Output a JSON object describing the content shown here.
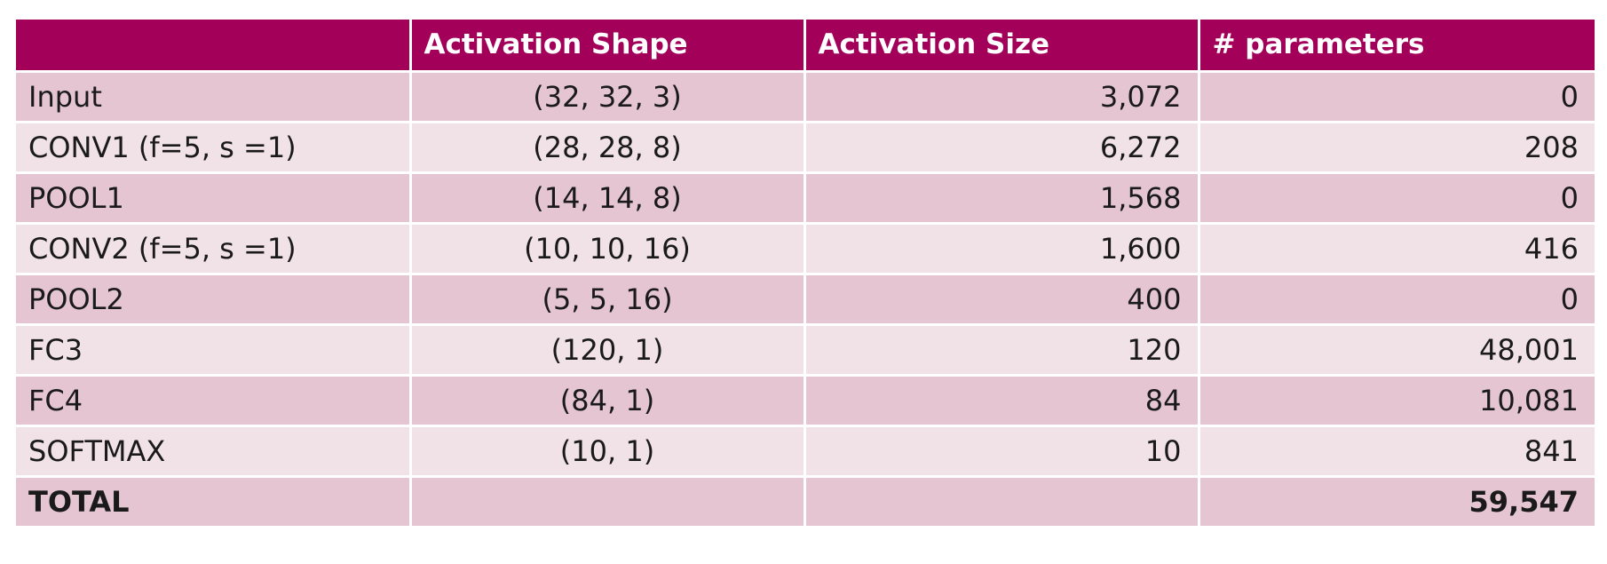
{
  "columns": [
    "",
    "Activation Shape",
    "Activation Size",
    "# parameters"
  ],
  "rows": [
    {
      "layer": "Input",
      "shape": "(32, 32, 3)",
      "size": "3,072",
      "params": "0"
    },
    {
      "layer": "CONV1 (f=5, s =1)",
      "shape": "(28, 28, 8)",
      "size": "6,272",
      "params": "208"
    },
    {
      "layer": "POOL1",
      "shape": "(14, 14, 8)",
      "size": "1,568",
      "params": "0"
    },
    {
      "layer": "CONV2 (f=5, s =1)",
      "shape": "(10, 10, 16)",
      "size": "1,600",
      "params": "416"
    },
    {
      "layer": "POOL2",
      "shape": "(5, 5, 16)",
      "size": "400",
      "params": "0"
    },
    {
      "layer": "FC3",
      "shape": "(120, 1)",
      "size": "120",
      "params": "48,001"
    },
    {
      "layer": "FC4",
      "shape": "(84, 1)",
      "size": "84",
      "params": "10,081"
    },
    {
      "layer": "SOFTMAX",
      "shape": "(10, 1)",
      "size": "10",
      "params": "841"
    }
  ],
  "total": {
    "label": "TOTAL",
    "shape": "",
    "size": "",
    "params": "59,547"
  },
  "colors": {
    "header_bg": "#a3005a",
    "row_dark": "#e4c5d1",
    "row_light": "#f1e2e8"
  }
}
